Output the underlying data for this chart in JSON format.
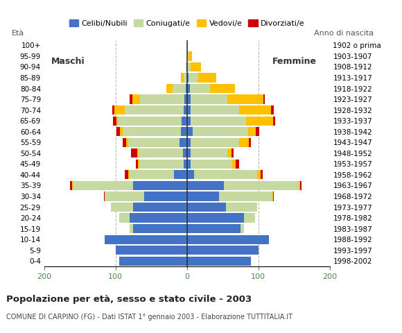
{
  "age_groups": [
    "0-4",
    "5-9",
    "10-14",
    "15-19",
    "20-24",
    "25-29",
    "30-34",
    "35-39",
    "40-44",
    "45-49",
    "50-54",
    "55-59",
    "60-64",
    "65-69",
    "70-74",
    "75-79",
    "80-84",
    "85-89",
    "90-94",
    "95-99",
    "100+"
  ],
  "birth_years": [
    "1998-2002",
    "1993-1997",
    "1988-1992",
    "1983-1987",
    "1978-1982",
    "1973-1977",
    "1968-1972",
    "1963-1967",
    "1958-1962",
    "1953-1957",
    "1948-1952",
    "1943-1947",
    "1938-1942",
    "1933-1937",
    "1928-1932",
    "1923-1927",
    "1918-1922",
    "1913-1917",
    "1908-1912",
    "1903-1907",
    "1902 o prima"
  ],
  "males_celibinubili": [
    95,
    100,
    115,
    75,
    80,
    75,
    60,
    75,
    18,
    5,
    6,
    10,
    8,
    7,
    5,
    4,
    2,
    0,
    0,
    0,
    0
  ],
  "males_coniugati": [
    0,
    0,
    0,
    5,
    15,
    32,
    55,
    85,
    62,
    62,
    62,
    72,
    82,
    90,
    82,
    62,
    18,
    5,
    2,
    0,
    0
  ],
  "males_vedovi": [
    0,
    0,
    0,
    0,
    0,
    0,
    0,
    1,
    2,
    2,
    2,
    3,
    4,
    2,
    15,
    10,
    9,
    3,
    0,
    0,
    0
  ],
  "males_divorziati": [
    0,
    0,
    0,
    0,
    0,
    0,
    1,
    3,
    5,
    3,
    8,
    5,
    5,
    5,
    3,
    4,
    0,
    0,
    0,
    0,
    0
  ],
  "females_celibinubili": [
    90,
    100,
    115,
    75,
    80,
    55,
    45,
    52,
    10,
    5,
    5,
    5,
    8,
    5,
    5,
    5,
    4,
    2,
    0,
    0,
    0
  ],
  "females_coniugate": [
    0,
    0,
    0,
    5,
    15,
    43,
    75,
    105,
    88,
    58,
    52,
    68,
    78,
    78,
    68,
    52,
    28,
    14,
    5,
    2,
    0
  ],
  "females_vedove": [
    0,
    0,
    0,
    0,
    0,
    0,
    1,
    2,
    5,
    5,
    5,
    14,
    10,
    38,
    45,
    50,
    35,
    25,
    15,
    5,
    0
  ],
  "females_divorziate": [
    0,
    0,
    0,
    0,
    0,
    0,
    1,
    2,
    3,
    5,
    3,
    3,
    5,
    3,
    4,
    2,
    0,
    0,
    0,
    0,
    0
  ],
  "colors_celibinubili": "#4472c4",
  "colors_coniugati": "#c5d9a0",
  "colors_vedovi": "#ffc000",
  "colors_divorziati": "#cc0000",
  "xlim": [
    -200,
    200
  ],
  "xticks": [
    -200,
    -100,
    0,
    100,
    200
  ],
  "xticklabels": [
    "200",
    "100",
    "0",
    "100",
    "200"
  ],
  "title": "Popolazione per età, sesso e stato civile - 2003",
  "subtitle": "COMUNE DI CARPINO (FG) - Dati ISTAT 1° gennaio 2003 - Elaborazione TUTTITALIA.IT",
  "eta_label": "Età",
  "anno_label": "Anno di nascita",
  "maschi_label": "Maschi",
  "femmine_label": "Femmine",
  "legend_labels": [
    "Celibi/Nubili",
    "Coniugati/e",
    "Vedovi/e",
    "Divorziati/e"
  ],
  "bg_color": "#ffffff",
  "grid_color": "#bbbbbb",
  "tick_color": "#4a8a4a"
}
